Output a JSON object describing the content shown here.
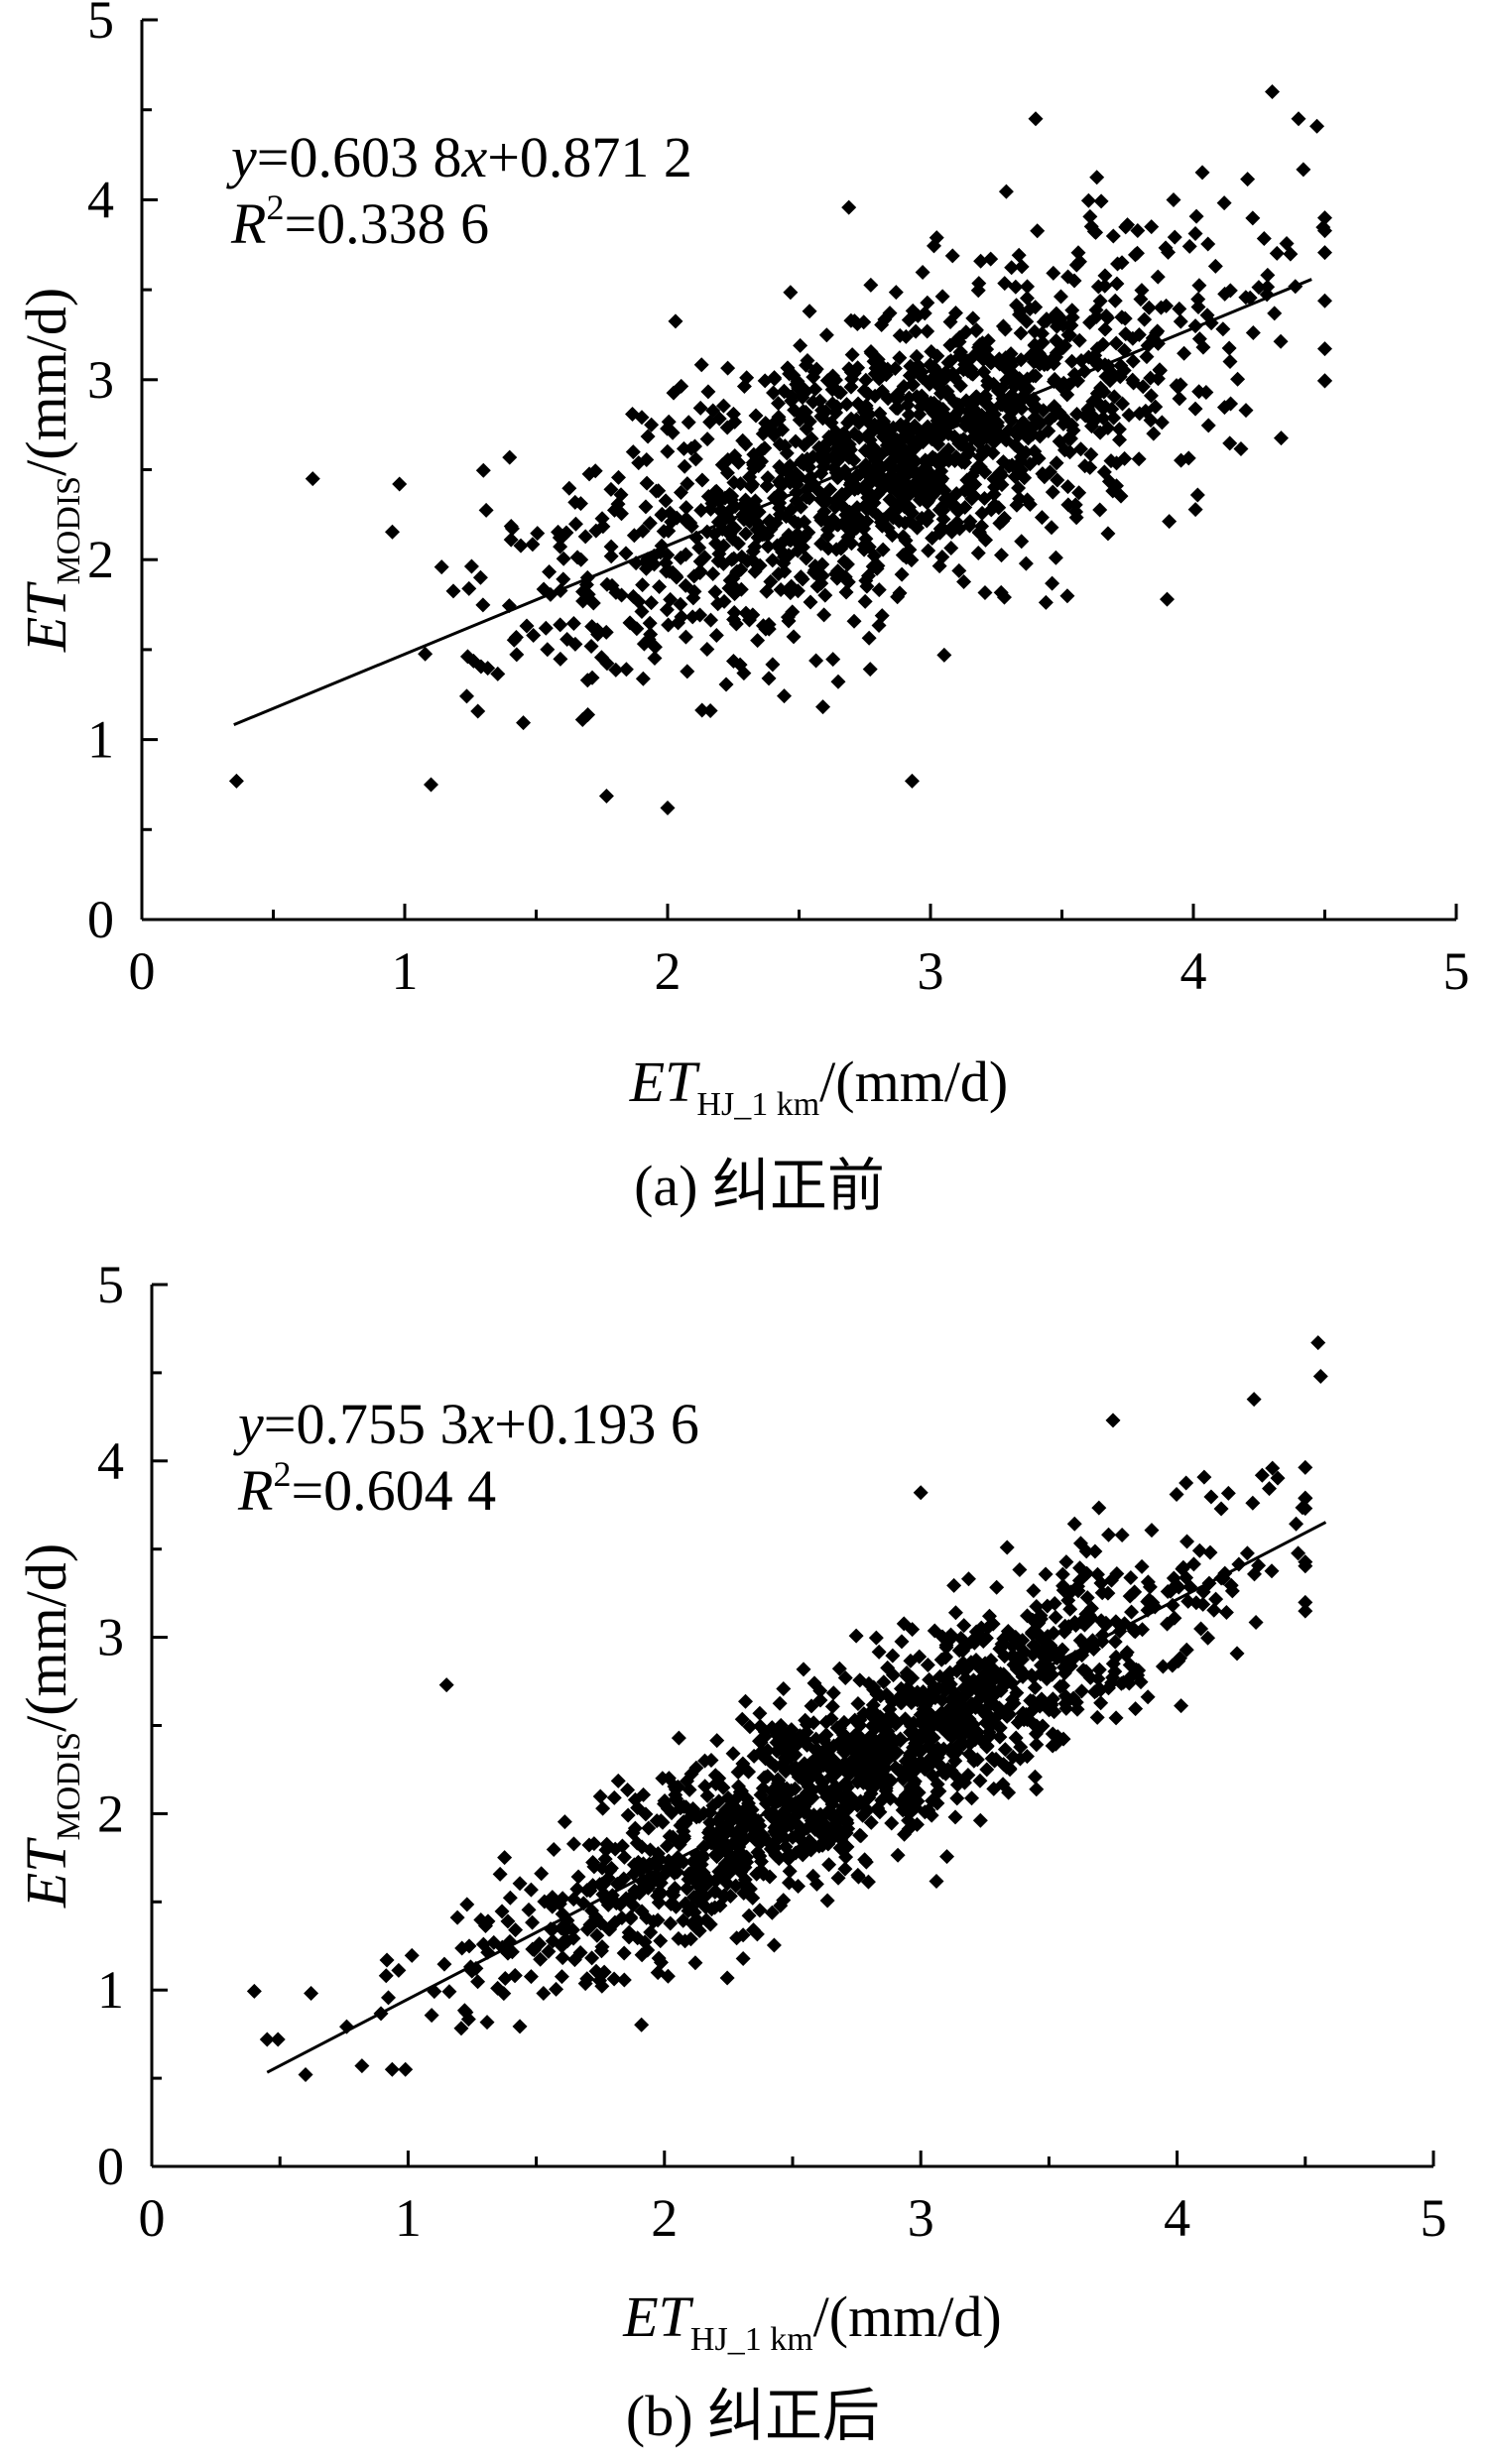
{
  "chart_data": [
    {
      "type": "scatter",
      "panel_label": "(a) 纠正前",
      "xlabel": {
        "main": "ET",
        "sub": "HJ_1 km",
        "unit": "/(mm/d)"
      },
      "ylabel": {
        "main": "ET",
        "sub": "MODIS",
        "unit": "/(mm/d)"
      },
      "xlim": [
        0,
        5
      ],
      "ylim": [
        0,
        5
      ],
      "xticks": [
        "0",
        "1",
        "2",
        "3",
        "4",
        "5"
      ],
      "yticks": [
        "0",
        "1",
        "2",
        "3",
        "4",
        "5"
      ],
      "regression": {
        "slope": 0.6038,
        "intercept": 0.8712,
        "x_range": [
          0.35,
          4.45
        ]
      },
      "equation": {
        "y": "y",
        "eq1": "=0.603 8",
        "x": "x",
        "eq2": "+0.871 2"
      },
      "r2": {
        "R": "R",
        "sup": "2",
        "value": "=0.338 6"
      },
      "n_points": 1500,
      "seed": 17,
      "cluster_center": [
        2.85,
        2.6
      ],
      "spread": [
        0.62,
        0.62
      ],
      "noise": 0.72,
      "outliers": [
        [
          0.36,
          0.77
        ],
        [
          0.65,
          2.45
        ],
        [
          0.98,
          2.42
        ],
        [
          1.1,
          0.75
        ],
        [
          2.0,
          0.62
        ],
        [
          2.93,
          0.77
        ],
        [
          4.4,
          4.45
        ],
        [
          4.3,
          4.6
        ],
        [
          3.4,
          4.45
        ],
        [
          3.9,
          1.78
        ],
        [
          4.2,
          2.83
        ]
      ]
    },
    {
      "type": "scatter",
      "panel_label": "(b) 纠正后",
      "xlabel": {
        "main": "ET",
        "sub": "HJ_1 km",
        "unit": "/(mm/d)"
      },
      "ylabel": {
        "main": "ET",
        "sub": "MODIS",
        "unit": "/(mm/d)"
      },
      "xlim": [
        0,
        5
      ],
      "ylim": [
        0,
        5
      ],
      "xticks": [
        "0",
        "1",
        "2",
        "3",
        "4",
        "5"
      ],
      "yticks": [
        "0",
        "1",
        "2",
        "3",
        "4",
        "5"
      ],
      "regression": {
        "slope": 0.7553,
        "intercept": 0.1936,
        "x_range": [
          0.45,
          4.58
        ]
      },
      "equation": {
        "y": "y",
        "eq1": "=0.755 3",
        "x": "x",
        "eq2": "+0.193 6"
      },
      "r2": {
        "R": "R",
        "sup": "2",
        "value": "=0.604 4"
      },
      "n_points": 1500,
      "seed": 91,
      "cluster_center": [
        2.75,
        2.28
      ],
      "spread": [
        0.72,
        0.72
      ],
      "noise": 0.5,
      "outliers": [
        [
          0.45,
          0.72
        ],
        [
          0.6,
          0.52
        ],
        [
          0.82,
          0.57
        ],
        [
          1.15,
          2.73
        ],
        [
          4.55,
          4.67
        ],
        [
          4.56,
          4.48
        ],
        [
          4.3,
          4.35
        ],
        [
          3.75,
          4.23
        ],
        [
          3.0,
          3.82
        ]
      ]
    }
  ]
}
